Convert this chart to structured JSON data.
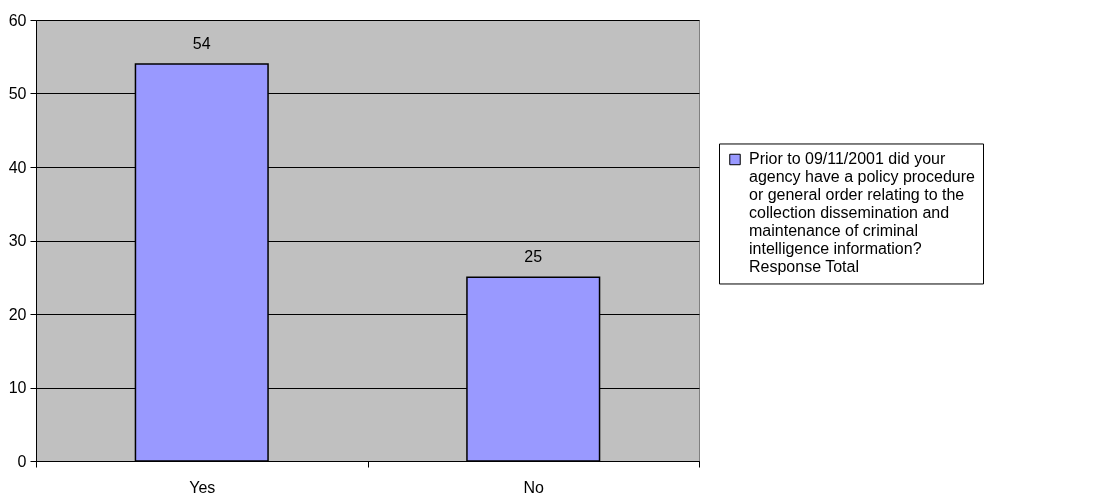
{
  "chart_data": {
    "type": "bar",
    "categories": [
      "Yes",
      "No"
    ],
    "series": [
      {
        "name": "Prior to 09/11/2001 did your agency have a policy procedure or general order relating to the collection dissemination and maintenance of criminal intelligence information? Response Total",
        "color": "#9999ff",
        "values": [
          54,
          25
        ]
      }
    ],
    "ylim": [
      0,
      60
    ],
    "yticks": [
      0,
      10,
      20,
      30,
      40,
      50,
      60
    ],
    "grid": "y",
    "legend": "right",
    "data_labels": true
  }
}
